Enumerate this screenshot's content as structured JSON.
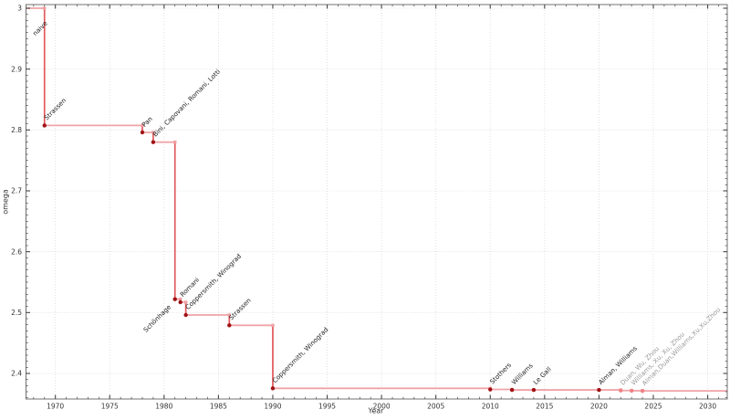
{
  "chart_data": {
    "type": "line",
    "subtype": "step-post",
    "title": "",
    "xlabel": "Year",
    "ylabel": "omega",
    "xlim": [
      1967.3,
      2031.8
    ],
    "ylim": [
      2.358,
      3.006
    ],
    "x_ticks": [
      1970,
      1975,
      1980,
      1985,
      1990,
      1995,
      2000,
      2005,
      2010,
      2015,
      2020,
      2025,
      2030
    ],
    "x_minor_step": 1,
    "y_ticks": [
      {
        "v": 3.0,
        "label": "3"
      },
      {
        "v": 2.9,
        "label": "2.9"
      },
      {
        "v": 2.8,
        "label": "2.8"
      },
      {
        "v": 2.7,
        "label": "2.7"
      },
      {
        "v": 2.6,
        "label": "2.6"
      },
      {
        "v": 2.5,
        "label": "2.5"
      },
      {
        "v": 2.4,
        "label": "2.4"
      }
    ],
    "y_minor_step": 0.01,
    "grid": "dotted major gridlines both axes",
    "legend": "none",
    "initial": {
      "label": "naive",
      "omega": 3.0,
      "label_anchor": {
        "year": 1967.95,
        "omega": 2.946
      }
    },
    "points": [
      {
        "year": 1969,
        "omega": 2.8074,
        "label": "Strassen",
        "recent": false,
        "label_side": "upright"
      },
      {
        "year": 1978,
        "omega": 2.796,
        "label": "Pan",
        "recent": false,
        "label_side": "upright"
      },
      {
        "year": 1979,
        "omega": 2.78,
        "label": "Bini, Capovani, Romani, Lotti",
        "recent": false,
        "label_side": "upright"
      },
      {
        "year": 1981,
        "omega": 2.522,
        "label": "Schönhage",
        "recent": false,
        "label_side": "downleft"
      },
      {
        "year": 1981.5,
        "omega": 2.517,
        "label": "Romani",
        "recent": false,
        "label_side": "upright"
      },
      {
        "year": 1982,
        "omega": 2.496,
        "label": "Coppersmith, Winograd",
        "recent": false,
        "label_side": "upright"
      },
      {
        "year": 1986,
        "omega": 2.479,
        "label": "Strassen",
        "recent": false,
        "label_side": "upright"
      },
      {
        "year": 1990,
        "omega": 2.3755,
        "label": "Coppersmith, Winograd",
        "recent": false,
        "label_side": "upright"
      },
      {
        "year": 2010,
        "omega": 2.3737,
        "label": "Stothers",
        "recent": false,
        "label_side": "upright"
      },
      {
        "year": 2012,
        "omega": 2.3729,
        "label": "Williams",
        "recent": false,
        "label_side": "upright"
      },
      {
        "year": 2014,
        "omega": 2.3729,
        "label": "Le Gall",
        "recent": false,
        "label_side": "upright"
      },
      {
        "year": 2020,
        "omega": 2.3729,
        "label": "Alman, Williams",
        "recent": false,
        "label_side": "upright"
      },
      {
        "year": 2022,
        "omega": 2.3719,
        "label": "Duan, Wu, Zhou",
        "recent": true,
        "label_side": "upright"
      },
      {
        "year": 2023,
        "omega": 2.3716,
        "label": "Williams, Xu, Xu, Zhou",
        "recent": true,
        "label_side": "upright"
      },
      {
        "year": 2024,
        "omega": 2.3713,
        "label": "Alman,Duan,Williams,Xu,Xu,Zhou",
        "recent": true,
        "label_side": "upright"
      }
    ],
    "colors": {
      "step_line": "#f0a4a7",
      "drop_line": "#e0585a",
      "corner_marker": "#efa0a3",
      "point_marker": "#a01215",
      "point_marker_recent": "#ed8285",
      "label_text": "#1c1c1c",
      "label_text_recent": "#9a9a9a",
      "spine": "#707070",
      "tick": "#444444",
      "grid": "#d9d9d9",
      "background": "#ffffff"
    }
  }
}
